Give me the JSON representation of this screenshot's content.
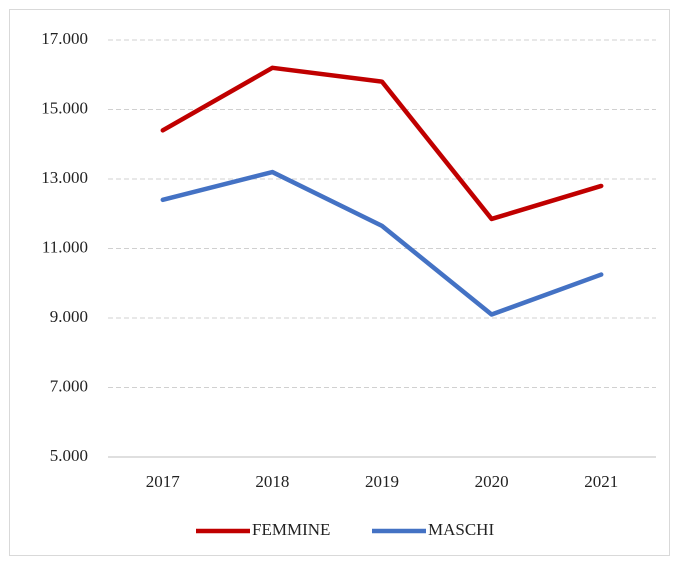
{
  "chart_data": {
    "type": "line",
    "categories": [
      "2017",
      "2018",
      "2019",
      "2020",
      "2021"
    ],
    "series": [
      {
        "name": "FEMMINE",
        "color": "#c00000",
        "values": [
          14400,
          16200,
          15800,
          11850,
          12800
        ]
      },
      {
        "name": "MASCHI",
        "color": "#4472c4",
        "values": [
          12400,
          13200,
          11650,
          9100,
          10250
        ]
      }
    ],
    "ylim": [
      5000,
      17000
    ],
    "yticks": [
      {
        "value": 5000,
        "label": "5.000"
      },
      {
        "value": 7000,
        "label": "7.000"
      },
      {
        "value": 9000,
        "label": "9.000"
      },
      {
        "value": 11000,
        "label": "11.000"
      },
      {
        "value": 13000,
        "label": "13.000"
      },
      {
        "value": 15000,
        "label": "15.000"
      },
      {
        "value": 17000,
        "label": "17.000"
      }
    ],
    "grid": true,
    "legend": "bottom"
  }
}
